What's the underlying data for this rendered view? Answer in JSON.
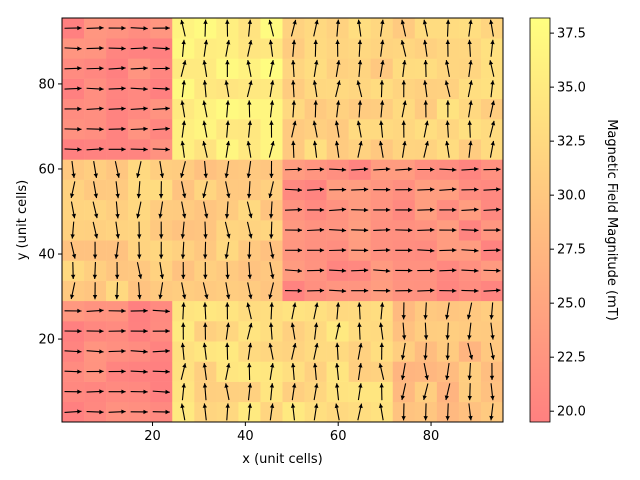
{
  "chart_data": {
    "type": "heatmap",
    "subtype": "quiver-over-heatmap",
    "xlabel": "x (unit cells)",
    "ylabel": "y (unit cells)",
    "colorbar_label": "Magnetic Field Magnitude (mT)",
    "xlim": [
      0.5,
      95.5
    ],
    "ylim": [
      0.5,
      95.5
    ],
    "xticks": [
      20,
      40,
      60,
      80
    ],
    "yticks": [
      20,
      40,
      60,
      80
    ],
    "colorbar_range": [
      19.5,
      38.2
    ],
    "colorbar_ticks": [
      "20.0",
      "22.5",
      "25.0",
      "27.5",
      "30.0",
      "32.5",
      "35.0",
      "37.5"
    ],
    "colormap": [
      "#ff8080",
      "#ffa080",
      "#ffc080",
      "#ffe080",
      "#ffff80"
    ],
    "grid": "20x20 cells of 4.75 units",
    "regions": [
      {
        "name": "top-left",
        "field_mT": 21,
        "direction": "+x"
      },
      {
        "name": "top-center",
        "field_mT": 36,
        "direction": "+y"
      },
      {
        "name": "top-right",
        "field_mT": 32,
        "direction": "+y"
      },
      {
        "name": "left-middle",
        "field_mT": 31,
        "direction": "-y"
      },
      {
        "name": "right-middle",
        "field_mT": 22,
        "direction": "+x"
      },
      {
        "name": "bottom-left",
        "field_mT": 21,
        "direction": "+x"
      },
      {
        "name": "bottom-center",
        "field_mT": 33,
        "direction": "+y"
      },
      {
        "name": "bottom-right",
        "field_mT": 29,
        "direction": "-y"
      }
    ]
  }
}
